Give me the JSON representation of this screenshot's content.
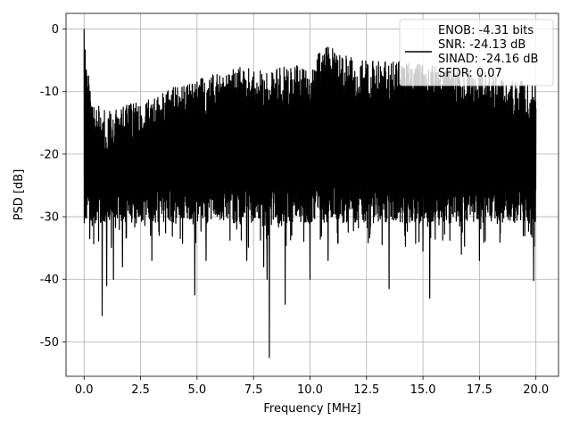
{
  "chart_data": {
    "type": "line",
    "title": "",
    "xlabel": "Frequency [MHz]",
    "ylabel": "PSD [dB]",
    "xlim": [
      -0.8,
      21.0
    ],
    "ylim": [
      -55.5,
      2.5
    ],
    "x_ticks": [
      "0.0",
      "2.5",
      "5.0",
      "7.5",
      "10.0",
      "12.5",
      "15.0",
      "17.5",
      "20.0"
    ],
    "y_ticks": [
      "0",
      "-10",
      "-20",
      "-30",
      "-40",
      "-50"
    ],
    "grid": true,
    "legend_position": "top-right",
    "series": [
      {
        "color": "#000000",
        "x_range": [
          0.0,
          20.0
        ],
        "peak": {
          "x": 0.0,
          "y": 0.0
        },
        "upper_envelope": [
          [
            0.0,
            0.0
          ],
          [
            0.15,
            -6
          ],
          [
            0.5,
            -12
          ],
          [
            1.0,
            -13
          ],
          [
            2.0,
            -12
          ],
          [
            3.0,
            -11
          ],
          [
            4.0,
            -9
          ],
          [
            5.0,
            -8
          ],
          [
            6.0,
            -7
          ],
          [
            7.0,
            -6
          ],
          [
            8.0,
            -6.5
          ],
          [
            10.0,
            -5.5
          ],
          [
            10.7,
            -1.8
          ],
          [
            12.0,
            -5
          ],
          [
            14.0,
            -5
          ],
          [
            16.0,
            -6
          ],
          [
            18.0,
            -7
          ],
          [
            20.0,
            -9
          ]
        ],
        "lower_spikes": [
          [
            0.25,
            -33.5
          ],
          [
            0.8,
            -45.8
          ],
          [
            1.0,
            -41
          ],
          [
            1.3,
            -40
          ],
          [
            1.7,
            -38
          ],
          [
            3.0,
            -37
          ],
          [
            4.9,
            -42.5
          ],
          [
            5.4,
            -37
          ],
          [
            7.2,
            -37
          ],
          [
            7.95,
            -38
          ],
          [
            8.1,
            -40
          ],
          [
            8.2,
            -52.5
          ],
          [
            8.9,
            -44
          ],
          [
            10.0,
            -40
          ],
          [
            10.8,
            -37
          ],
          [
            13.5,
            -41.5
          ],
          [
            14.2,
            -33
          ],
          [
            15.0,
            -35.5
          ],
          [
            15.3,
            -43
          ],
          [
            16.7,
            -36
          ],
          [
            17.5,
            -37
          ],
          [
            19.9,
            -40.2
          ]
        ],
        "typical_floor": -29
      }
    ],
    "legend_lines": [
      "ENOB: -4.31 bits",
      "SNR: -24.13 dB",
      "SINAD: -24.16 dB",
      "SFDR: 0.07"
    ]
  }
}
